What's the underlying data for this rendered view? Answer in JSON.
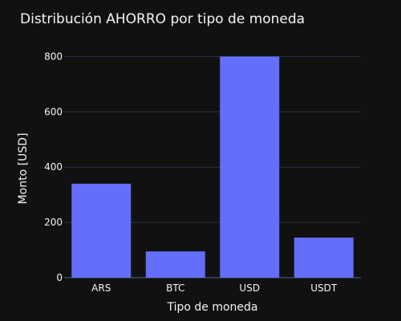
{
  "chart_data": {
    "type": "bar",
    "title": "Distribución AHORRO por tipo de moneda",
    "xlabel": "Tipo de moneda",
    "ylabel": "Monto [USD]",
    "categories": [
      "ARS",
      "BTC",
      "USD",
      "USDT"
    ],
    "values": [
      340,
      95,
      800,
      145
    ],
    "ylim": [
      0,
      842
    ],
    "yticks": [
      0,
      200,
      400,
      600,
      800
    ],
    "grid": true,
    "legend": "none",
    "bar_color": "#636efa",
    "background_color": "#111111",
    "text_color": "#f2f5fa"
  }
}
